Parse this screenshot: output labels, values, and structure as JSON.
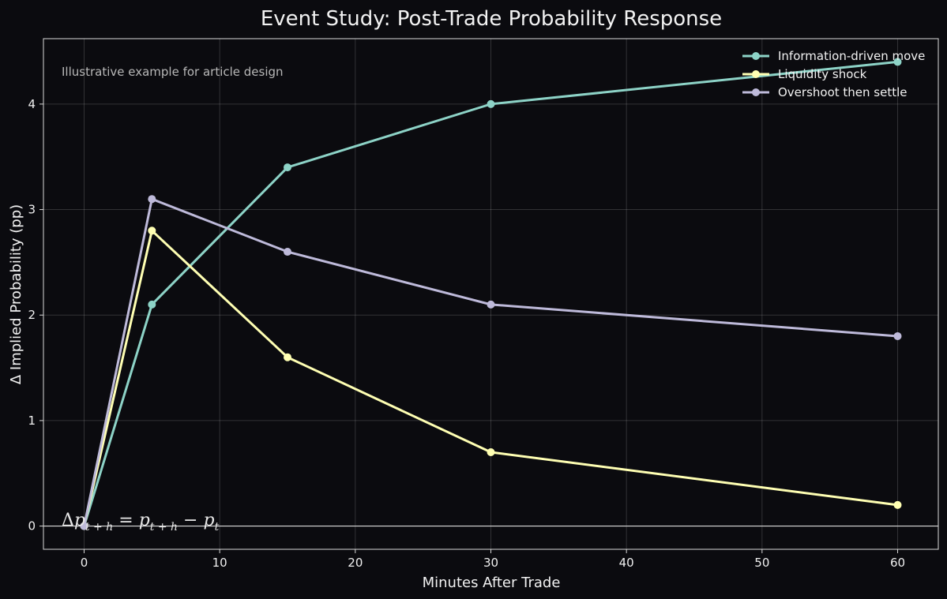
{
  "chart_data": {
    "type": "line",
    "title": "Event Study: Post-Trade Probability Response",
    "xlabel": "Minutes After Trade",
    "ylabel": "Δ Implied Probability (pp)",
    "x": [
      0,
      5,
      15,
      30,
      60
    ],
    "xlim": [
      -3,
      63
    ],
    "ylim": [
      -0.22,
      4.62
    ],
    "xticks": [
      0,
      10,
      20,
      30,
      40,
      50,
      60
    ],
    "yticks": [
      0,
      1,
      2,
      3,
      4
    ],
    "grid": true,
    "zero_line": true,
    "legend_position": "top-right",
    "annotation": "Illustrative example for article design",
    "formula": {
      "delta": "Δ",
      "lhs_var": "p",
      "lhs_sub": "t + h",
      "equals": " = ",
      "rhs1_var": "p",
      "rhs1_sub": "t + h",
      "minus": " − ",
      "rhs2_var": "p",
      "rhs2_sub": "t"
    },
    "series": [
      {
        "name": "Information-driven move",
        "color": "#8dd3c7",
        "values": [
          0,
          2.1,
          3.4,
          4.0,
          4.4
        ]
      },
      {
        "name": "Liquidity shock",
        "color": "#ffffb3",
        "values": [
          0,
          2.8,
          1.6,
          0.7,
          0.2
        ]
      },
      {
        "name": "Overshoot then settle",
        "color": "#bebada",
        "values": [
          0,
          3.1,
          2.6,
          2.1,
          1.8
        ]
      }
    ]
  }
}
